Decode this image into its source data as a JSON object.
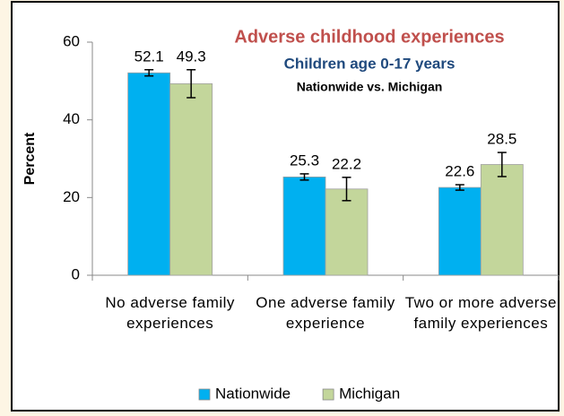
{
  "chart_data": {
    "type": "bar",
    "title": "Adverse childhood experiences",
    "subtitle": "Children age 0-17 years",
    "annotation": "Nationwide vs. Michigan",
    "y_label": "Percent",
    "categories": [
      "No adverse family experiences",
      "One adverse family experience",
      "Two or more adverse family experiences"
    ],
    "series": [
      {
        "name": "Nationwide",
        "color": "#00b0f0",
        "values": [
          52.1,
          25.3,
          22.6
        ],
        "errors": [
          0.8,
          0.8,
          0.7
        ]
      },
      {
        "name": "Michigan",
        "color": "#c3d69b",
        "values": [
          49.3,
          22.2,
          28.5
        ],
        "errors": [
          3.6,
          3.0,
          3.1
        ]
      }
    ],
    "ylim": [
      0,
      60
    ],
    "yticks": [
      0,
      20,
      40,
      60
    ],
    "legend": "bottom"
  }
}
